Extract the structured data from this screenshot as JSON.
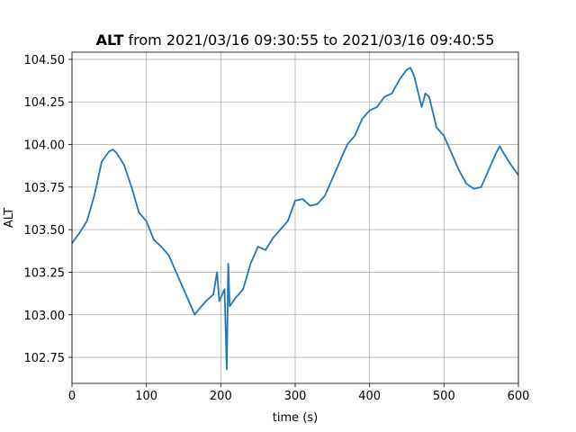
{
  "chart_data": {
    "type": "line",
    "title": {
      "bold": "ALT",
      "rest": "from 2021/03/16 09:30:55 to 2021/03/16 09:40:55"
    },
    "x_label": "time (s)",
    "y_label": "ALT",
    "x": [
      0,
      10,
      20,
      30,
      40,
      50,
      55,
      60,
      70,
      80,
      90,
      100,
      110,
      120,
      130,
      140,
      150,
      160,
      165,
      170,
      180,
      190,
      195,
      198,
      205,
      208,
      210,
      212,
      220,
      230,
      240,
      250,
      260,
      270,
      280,
      290,
      300,
      310,
      320,
      330,
      340,
      350,
      360,
      370,
      380,
      390,
      400,
      410,
      420,
      430,
      440,
      450,
      455,
      460,
      470,
      475,
      480,
      490,
      500,
      510,
      520,
      530,
      540,
      550,
      560,
      570,
      575,
      580,
      590,
      600
    ],
    "series": [
      {
        "color": "#1f77b4",
        "values": [
          103.42,
          103.48,
          103.55,
          103.7,
          103.9,
          103.96,
          103.97,
          103.95,
          103.88,
          103.75,
          103.6,
          103.55,
          103.44,
          103.4,
          103.35,
          103.25,
          103.15,
          103.05,
          103.0,
          103.03,
          103.08,
          103.12,
          103.25,
          103.08,
          103.15,
          102.68,
          103.3,
          103.05,
          103.1,
          103.15,
          103.3,
          103.4,
          103.38,
          103.45,
          103.5,
          103.55,
          103.67,
          103.68,
          103.64,
          103.65,
          103.7,
          103.8,
          103.9,
          104.0,
          104.05,
          104.15,
          104.2,
          104.22,
          104.28,
          104.3,
          104.38,
          104.44,
          104.45,
          104.4,
          104.22,
          104.3,
          104.28,
          104.1,
          104.05,
          103.95,
          103.85,
          103.77,
          103.74,
          103.75,
          103.85,
          103.95,
          103.99,
          103.95,
          103.88,
          103.82
        ]
      }
    ],
    "xlim": [
      0,
      600
    ],
    "xticks": [
      0,
      100,
      200,
      300,
      400,
      500,
      600
    ],
    "ylim": [
      102.597,
      104.542
    ],
    "yticks": [
      102.75,
      {
        "value": 103,
        "label": "103.00"
      },
      103.25,
      {
        "value": 103.5,
        "label": "103.50"
      },
      103.75,
      {
        "value": 104,
        "label": "104.00"
      },
      104.25,
      {
        "value": 104.5,
        "label": "104.50"
      }
    ],
    "grid": true
  }
}
